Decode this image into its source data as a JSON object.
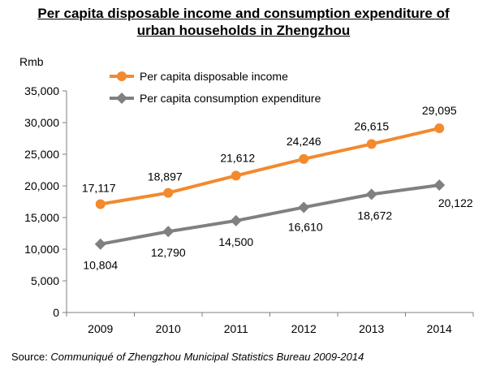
{
  "title_line1": "Per capita disposable income and consumption expenditure of",
  "title_line2": "urban households in Zhengzhou",
  "source_label": "Source: ",
  "source_text": "Communiqué of Zhengzhou Municipal Statistics Bureau 2009-2014",
  "colors": {
    "income": "#f28a2e",
    "expenditure": "#808080",
    "axis": "#7f7f7f"
  },
  "chart_data": {
    "type": "line",
    "title": "Per capita disposable income and consumption expenditure of urban households in Zhengzhou",
    "ylabel": "Rmb",
    "xlabel": "",
    "categories": [
      "2009",
      "2010",
      "2011",
      "2012",
      "2013",
      "2014"
    ],
    "ylim": [
      0,
      35000
    ],
    "yticks": [
      0,
      5000,
      10000,
      15000,
      20000,
      25000,
      30000,
      35000
    ],
    "ytick_labels": [
      "0",
      "5,000",
      "10,000",
      "15,000",
      "20,000",
      "25,000",
      "30,000",
      "35,000"
    ],
    "grid": false,
    "legend_position": "top",
    "series": [
      {
        "name": "Per capita disposable income",
        "values": [
          17117,
          18897,
          21612,
          24246,
          26615,
          29095
        ],
        "labels": [
          "17,117",
          "18,897",
          "21,612",
          "24,246",
          "26,615",
          "29,095"
        ]
      },
      {
        "name": "Per capita consumption expenditure",
        "values": [
          10804,
          12790,
          14500,
          16610,
          18672,
          20122
        ],
        "labels": [
          "10,804",
          "12,790",
          "14,500",
          "16,610",
          "18,672",
          "20,122"
        ]
      }
    ]
  }
}
